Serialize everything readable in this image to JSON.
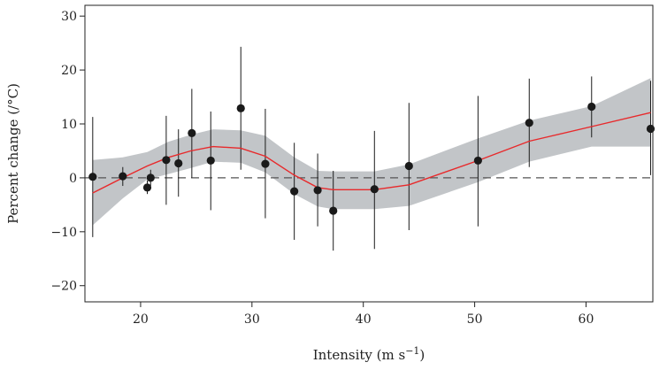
{
  "chart_data": {
    "type": "scatter",
    "title": "",
    "xlabel": "Intensity (m s",
    "xlabel_sup": "−1",
    "xlabel_end": ")",
    "ylabel": "Percent change (/°C)",
    "xlim": [
      15,
      66
    ],
    "ylim": [
      -23,
      32
    ],
    "x_ticks": [
      20,
      30,
      40,
      50,
      60
    ],
    "y_ticks": [
      -20,
      -10,
      0,
      10,
      20,
      30
    ],
    "y_tick_labels": [
      "−20",
      "−10",
      "0",
      "10",
      "20",
      "30"
    ],
    "reference_line": 0,
    "grid": false,
    "legend": "none",
    "points": [
      {
        "x": 15.7,
        "y": 0.2,
        "lo": -11.0,
        "hi": 11.3
      },
      {
        "x": 18.4,
        "y": 0.3,
        "lo": -1.5,
        "hi": 2.0
      },
      {
        "x": 20.6,
        "y": -1.8,
        "lo": -3.0,
        "hi": -0.5
      },
      {
        "x": 20.9,
        "y": 0.0,
        "lo": -1.5,
        "hi": 1.5
      },
      {
        "x": 22.3,
        "y": 3.3,
        "lo": -5.0,
        "hi": 11.5
      },
      {
        "x": 23.4,
        "y": 2.7,
        "lo": -3.5,
        "hi": 9.0
      },
      {
        "x": 24.6,
        "y": 8.3,
        "lo": 0.0,
        "hi": 16.5
      },
      {
        "x": 26.3,
        "y": 3.2,
        "lo": -6.0,
        "hi": 12.3
      },
      {
        "x": 29.0,
        "y": 12.9,
        "lo": 1.5,
        "hi": 24.3
      },
      {
        "x": 31.2,
        "y": 2.6,
        "lo": -7.5,
        "hi": 12.8
      },
      {
        "x": 33.8,
        "y": -2.5,
        "lo": -11.5,
        "hi": 6.5
      },
      {
        "x": 35.9,
        "y": -2.3,
        "lo": -9.0,
        "hi": 4.5
      },
      {
        "x": 37.3,
        "y": -6.1,
        "lo": -13.5,
        "hi": 1.3
      },
      {
        "x": 41.0,
        "y": -2.1,
        "lo": -13.2,
        "hi": 8.7
      },
      {
        "x": 44.1,
        "y": 2.2,
        "lo": -9.7,
        "hi": 13.9
      },
      {
        "x": 50.3,
        "y": 3.2,
        "lo": -9.0,
        "hi": 15.2
      },
      {
        "x": 54.9,
        "y": 10.2,
        "lo": 2.0,
        "hi": 18.4
      },
      {
        "x": 60.5,
        "y": 13.2,
        "lo": 7.5,
        "hi": 18.8
      },
      {
        "x": 65.8,
        "y": 9.1,
        "lo": 0.5,
        "hi": 18.0
      }
    ],
    "fit_line": {
      "color": "#e8292b",
      "x": [
        15.7,
        18.4,
        20.6,
        22.5,
        24.5,
        26.5,
        29.0,
        31.2,
        33.8,
        35.9,
        37.3,
        41.0,
        44.1,
        50.3,
        54.9,
        60.5,
        65.8
      ],
      "y": [
        -2.8,
        0.0,
        2.2,
        3.8,
        5.0,
        5.8,
        5.5,
        4.0,
        0.5,
        -1.8,
        -2.2,
        -2.2,
        -1.3,
        3.2,
        6.8,
        9.5,
        12.1
      ]
    },
    "confidence_band": {
      "color": "#c2c5c8",
      "x": [
        15.7,
        18.4,
        20.6,
        22.5,
        24.5,
        26.5,
        29.0,
        31.2,
        33.8,
        35.9,
        37.3,
        41.0,
        44.1,
        50.3,
        54.9,
        60.5,
        65.8
      ],
      "lower": [
        -8.8,
        -3.8,
        -0.3,
        0.7,
        1.8,
        3.0,
        2.8,
        1.0,
        -3.0,
        -5.3,
        -5.8,
        -5.8,
        -5.2,
        -0.8,
        3.0,
        5.8,
        5.8
      ],
      "upper": [
        3.3,
        3.8,
        4.8,
        6.7,
        8.0,
        9.0,
        8.8,
        7.8,
        3.8,
        1.3,
        1.2,
        1.2,
        2.5,
        7.3,
        10.6,
        13.3,
        18.5
      ]
    },
    "colors": {
      "points": "#1a1a1a",
      "error_bars": "#1a1a1a",
      "reference_line": "#555555",
      "axes": "#222222"
    }
  }
}
